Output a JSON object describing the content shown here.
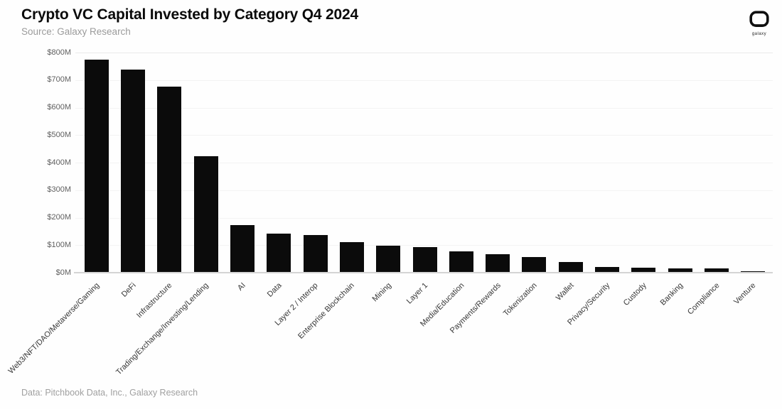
{
  "header": {
    "title": "Crypto VC Capital Invested by Category Q4 2024",
    "source": "Source: Galaxy Research"
  },
  "logo": {
    "label": "galaxy"
  },
  "footer": {
    "credit": "Data: Pitchbook Data, Inc., Galaxy Research"
  },
  "chart_data": {
    "type": "bar",
    "title": "Crypto VC Capital Invested by Category Q4 2024",
    "categories": [
      "Web3/NFT/DAO/Metaverse/Gaming",
      "DeFi",
      "Infrastructure",
      "Trading/Exchange/Investing/Lending",
      "AI",
      "Data",
      "Layer 2 / Interop",
      "Enterprise Blockchain",
      "Mining",
      "Layer 1",
      "Media/Education",
      "Payments/Rewards",
      "Tokenization",
      "Wallet",
      "Privacy/Security",
      "Custody",
      "Banking",
      "Compliance",
      "Venture"
    ],
    "values": [
      771,
      736,
      673,
      420,
      171,
      140,
      135,
      108,
      95,
      90,
      75,
      64,
      55,
      36,
      17,
      16,
      13,
      12,
      2
    ],
    "value_unit": "USD millions",
    "xlabel": "",
    "ylabel": "",
    "ylim": [
      0,
      800
    ],
    "ytick_step": 100,
    "ytick_labels": [
      "$0M",
      "$100M",
      "$200M",
      "$300M",
      "$400M",
      "$500M",
      "$600M",
      "$700M",
      "$800M"
    ],
    "grid": true,
    "legend": false,
    "sort": "descending",
    "bar_color": "#0b0b0b"
  }
}
